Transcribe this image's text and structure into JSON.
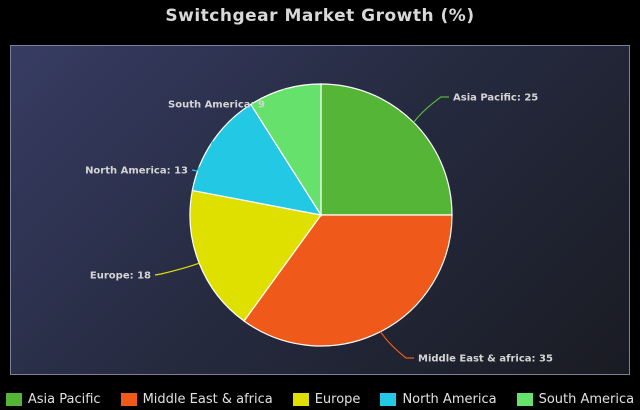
{
  "chart_data": {
    "type": "pie",
    "title": "Switchgear Market Growth (%)",
    "categories": [
      "Asia Pacific",
      "Middle East & africa",
      "Europe",
      "North America",
      "South America"
    ],
    "values": [
      25,
      35,
      18,
      13,
      9
    ],
    "slice_labels": [
      "Asia Pacific: 25",
      "Middle East & africa: 35",
      "Europe: 18",
      "North America: 13",
      "South America: 9"
    ],
    "colors": [
      "#55b536",
      "#ef5a1b",
      "#dfe000",
      "#22c8e4",
      "#66e26c"
    ],
    "legend": "bottom",
    "start_angle_deg": 0,
    "direction": "clockwise"
  }
}
